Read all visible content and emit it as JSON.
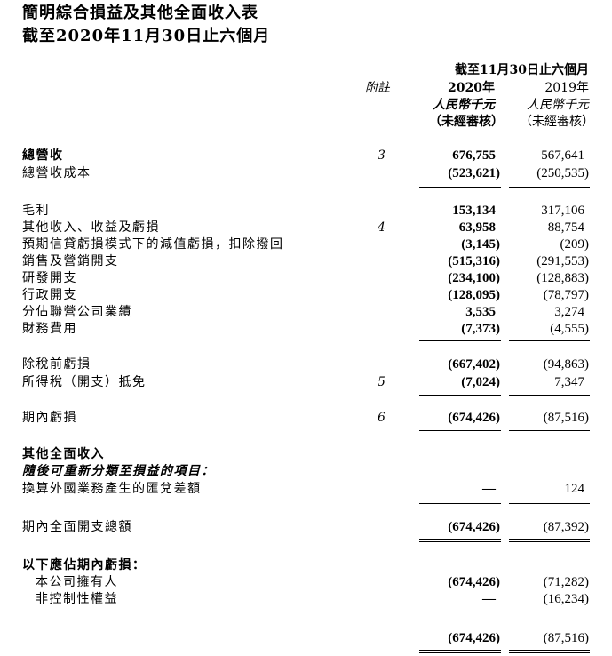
{
  "title": {
    "line1": "簡明綜合損益及其他全面收入表",
    "line2": "截至2020年11月30日止六個月"
  },
  "header": {
    "period": "截至11月30日止六個月",
    "note": "附註",
    "col1_year": "2020年",
    "col2_year": "2019年",
    "col1_unit": "人民幣千元",
    "col2_unit": "人民幣千元",
    "col1_audit": "（未經審核）",
    "col2_audit": "（未經審核）"
  },
  "rows": [
    {
      "label": "總營收",
      "note": "3",
      "v1": "676,755",
      "v2": "567,641",
      "bold": true
    },
    {
      "label": "總營收成本",
      "note": "",
      "v1": "(523,621)",
      "v2": "(250,535)"
    },
    {
      "label": "毛利",
      "note": "",
      "v1": "153,134",
      "v2": "317,106"
    },
    {
      "label": "其他收入、收益及虧損",
      "note": "4",
      "v1": "63,958",
      "v2": "88,754"
    },
    {
      "label": "預期信貸虧損模式下的減值虧損，扣除撥回",
      "note": "",
      "v1": "(3,145)",
      "v2": "(209)"
    },
    {
      "label": "銷售及營銷開支",
      "note": "",
      "v1": "(515,316)",
      "v2": "(291,553)"
    },
    {
      "label": "研發開支",
      "note": "",
      "v1": "(234,100)",
      "v2": "(128,883)"
    },
    {
      "label": "行政開支",
      "note": "",
      "v1": "(128,095)",
      "v2": "(78,797)"
    },
    {
      "label": "分佔聯營公司業績",
      "note": "",
      "v1": "3,535",
      "v2": "3,274"
    },
    {
      "label": "財務費用",
      "note": "",
      "v1": "(7,373)",
      "v2": "(4,555)"
    },
    {
      "label": "除稅前虧損",
      "note": "",
      "v1": "(667,402)",
      "v2": "(94,863)"
    },
    {
      "label": "所得稅（開支）抵免",
      "note": "5",
      "v1": "(7,024)",
      "v2": "7,347"
    },
    {
      "label": "期內虧損",
      "note": "6",
      "v1": "(674,426)",
      "v2": "(87,516)"
    },
    {
      "label": "其他全面收入",
      "note": "",
      "v1": "",
      "v2": "",
      "bold": true
    },
    {
      "label": "隨後可重新分類至損益的項目：",
      "note": "",
      "v1": "",
      "v2": "",
      "bold": true,
      "italic": true
    },
    {
      "label": "換算外國業務產生的匯兌差額",
      "note": "",
      "v1": "—",
      "v2": "124"
    },
    {
      "label": "期內全面開支總額",
      "note": "",
      "v1": "(674,426)",
      "v2": "(87,392)"
    },
    {
      "label": "以下應佔期內虧損：",
      "note": "",
      "v1": "",
      "v2": "",
      "bold": true
    },
    {
      "label": "本公司擁有人",
      "note": "",
      "v1": "(674,426)",
      "v2": "(71,282)",
      "indent": true
    },
    {
      "label": "非控制性權益",
      "note": "",
      "v1": "—",
      "v2": "(16,234)",
      "indent": true
    },
    {
      "label": "",
      "note": "",
      "v1": "(674,426)",
      "v2": "(87,516)"
    }
  ]
}
